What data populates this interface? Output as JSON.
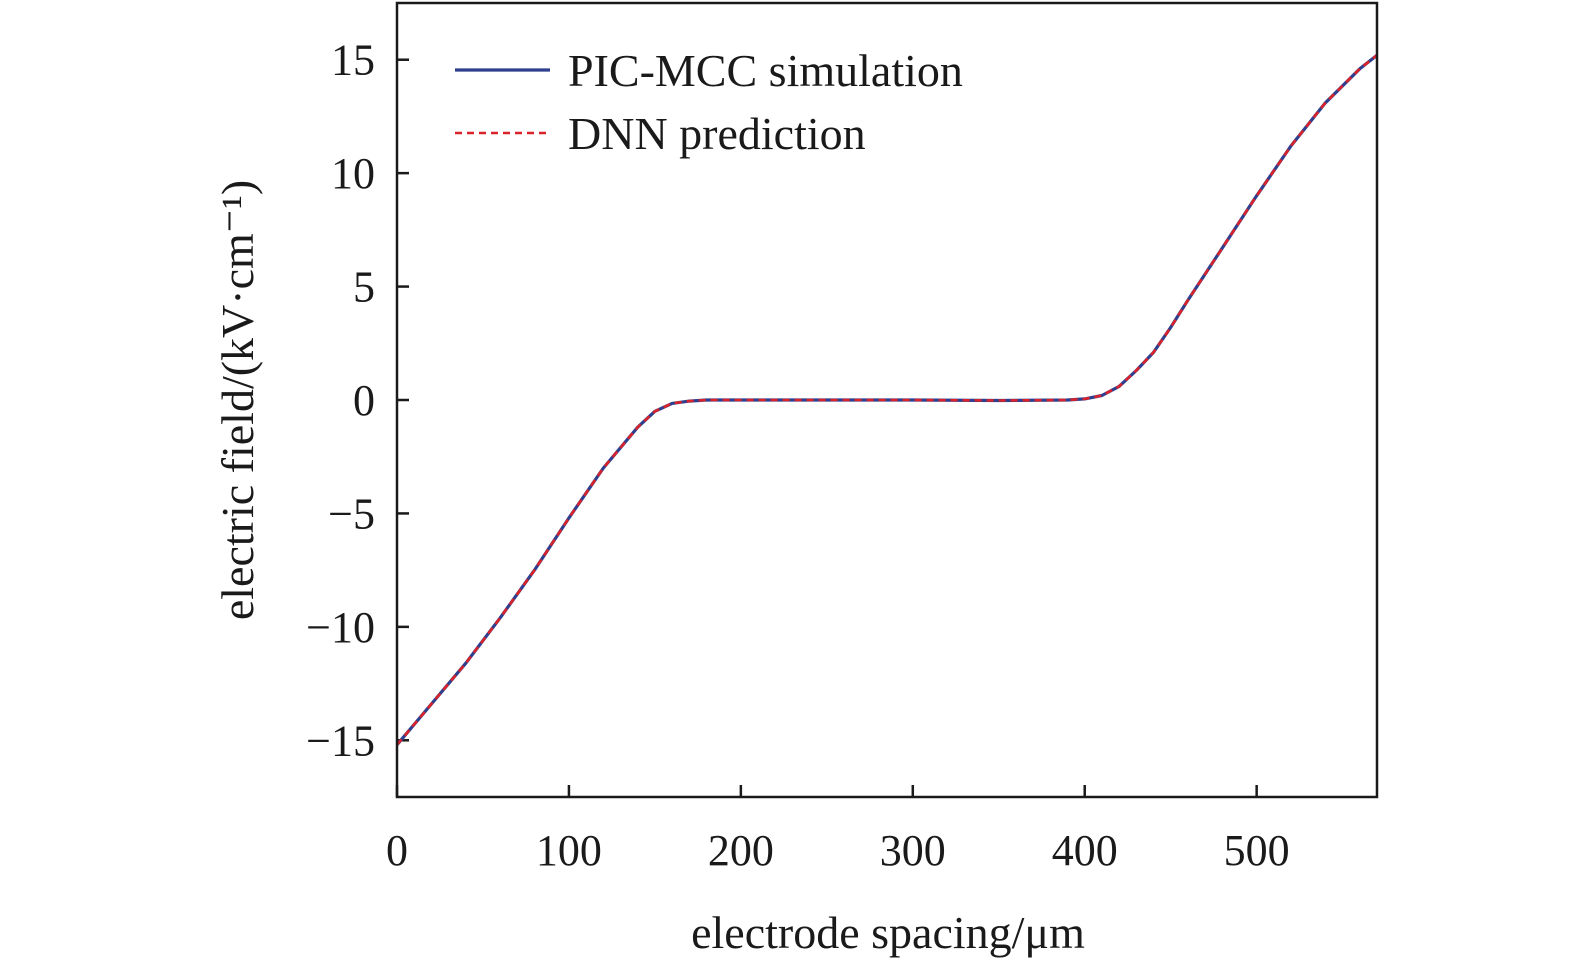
{
  "chart_data": {
    "type": "line",
    "xlabel": "electrode spacing/μm",
    "ylabel": "electric field/(kV·cm⁻¹)",
    "xlim": [
      0,
      570
    ],
    "ylim": [
      -17.5,
      17.5
    ],
    "xticks": [
      0,
      100,
      200,
      300,
      400,
      500
    ],
    "yticks": [
      15,
      10,
      5,
      0,
      -5,
      -10,
      -15
    ],
    "ytick_labels": [
      "15",
      "10",
      "5",
      "0",
      "−5",
      "−10",
      "−15"
    ],
    "grid": false,
    "legend_position": "top-left",
    "series": [
      {
        "name": "PIC-MCC simulation",
        "color": "#2e3f8f",
        "style": "solid",
        "x": [
          0,
          20,
          40,
          60,
          80,
          100,
          120,
          140,
          150,
          160,
          170,
          180,
          200,
          250,
          300,
          350,
          390,
          400,
          410,
          420,
          430,
          440,
          450,
          460,
          480,
          500,
          520,
          540,
          560,
          570
        ],
        "y": [
          -15.2,
          -13.4,
          -11.6,
          -9.6,
          -7.5,
          -5.2,
          -3.0,
          -1.2,
          -0.5,
          -0.15,
          -0.05,
          0.0,
          0.0,
          0.0,
          0.0,
          -0.02,
          0.0,
          0.05,
          0.2,
          0.6,
          1.3,
          2.1,
          3.2,
          4.4,
          6.7,
          9.0,
          11.2,
          13.1,
          14.6,
          15.2
        ]
      },
      {
        "name": "DNN prediction",
        "color": "#d9222a",
        "style": "dashed",
        "x": [
          0,
          20,
          40,
          60,
          80,
          100,
          120,
          140,
          150,
          160,
          170,
          180,
          200,
          250,
          300,
          350,
          390,
          400,
          410,
          420,
          430,
          440,
          450,
          460,
          480,
          500,
          520,
          540,
          560,
          570
        ],
        "y": [
          -15.2,
          -13.4,
          -11.6,
          -9.6,
          -7.5,
          -5.2,
          -3.0,
          -1.2,
          -0.5,
          -0.15,
          -0.05,
          0.0,
          0.0,
          0.0,
          0.0,
          -0.02,
          0.0,
          0.05,
          0.2,
          0.6,
          1.3,
          2.1,
          3.2,
          4.4,
          6.7,
          9.0,
          11.2,
          13.1,
          14.6,
          15.2
        ]
      }
    ]
  }
}
